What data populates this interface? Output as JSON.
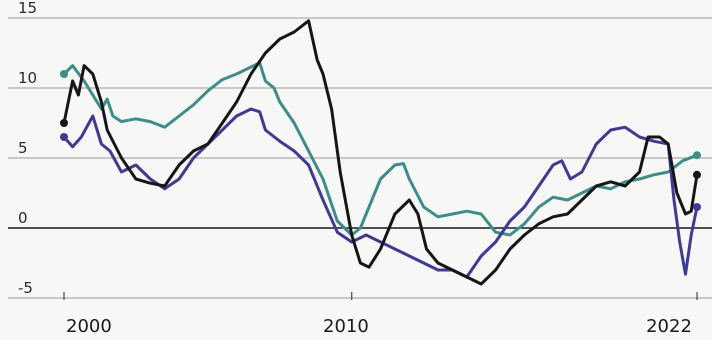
{
  "chart_data": {
    "type": "line",
    "ylim": [
      -5,
      15
    ],
    "xlim": [
      1999.75,
      2022.1
    ],
    "yticks": [
      -5,
      0,
      5,
      10,
      15
    ],
    "ytick_labels": [
      "-5",
      "0",
      "5",
      "10",
      "15"
    ],
    "xtick_labels": [
      {
        "x": 2000,
        "label": "2000"
      },
      {
        "x": 2010,
        "label": "2010"
      },
      {
        "x": 2022,
        "label": "2022"
      }
    ],
    "grid": true,
    "series": [
      {
        "color": "#3a8f88",
        "points": [
          [
            2000.0,
            11.0
          ],
          [
            2000.3,
            11.6
          ],
          [
            2000.7,
            10.5
          ],
          [
            2001.0,
            9.5
          ],
          [
            2001.3,
            8.5
          ],
          [
            2001.5,
            9.2
          ],
          [
            2001.7,
            8.0
          ],
          [
            2002.0,
            7.6
          ],
          [
            2002.5,
            7.8
          ],
          [
            2003.0,
            7.6
          ],
          [
            2003.5,
            7.2
          ],
          [
            2004.0,
            8.0
          ],
          [
            2004.5,
            8.8
          ],
          [
            2005.0,
            9.8
          ],
          [
            2005.5,
            10.6
          ],
          [
            2006.0,
            11.0
          ],
          [
            2006.5,
            11.5
          ],
          [
            2006.8,
            11.8
          ],
          [
            2007.0,
            10.5
          ],
          [
            2007.3,
            10.0
          ],
          [
            2007.5,
            9.0
          ],
          [
            2008.0,
            7.5
          ],
          [
            2008.5,
            5.5
          ],
          [
            2009.0,
            3.5
          ],
          [
            2009.5,
            0.5
          ],
          [
            2010.0,
            -0.5
          ],
          [
            2010.3,
            0.0
          ],
          [
            2010.7,
            2.0
          ],
          [
            2011.0,
            3.5
          ],
          [
            2011.5,
            4.5
          ],
          [
            2011.8,
            4.6
          ],
          [
            2012.0,
            3.5
          ],
          [
            2012.5,
            1.5
          ],
          [
            2013.0,
            0.8
          ],
          [
            2013.5,
            1.0
          ],
          [
            2014.0,
            1.2
          ],
          [
            2014.5,
            1.0
          ],
          [
            2015.0,
            -0.3
          ],
          [
            2015.5,
            -0.5
          ],
          [
            2016.0,
            0.3
          ],
          [
            2016.5,
            1.5
          ],
          [
            2017.0,
            2.2
          ],
          [
            2017.5,
            2.0
          ],
          [
            2018.0,
            2.5
          ],
          [
            2018.5,
            3.0
          ],
          [
            2019.0,
            2.8
          ],
          [
            2019.5,
            3.3
          ],
          [
            2020.0,
            3.5
          ],
          [
            2020.5,
            3.8
          ],
          [
            2021.0,
            4.0
          ],
          [
            2021.5,
            4.8
          ],
          [
            2022.0,
            5.2
          ]
        ]
      },
      {
        "color": "#3f3a9a",
        "points": [
          [
            2000.0,
            6.5
          ],
          [
            2000.3,
            5.8
          ],
          [
            2000.6,
            6.5
          ],
          [
            2001.0,
            8.0
          ],
          [
            2001.3,
            6.0
          ],
          [
            2001.6,
            5.5
          ],
          [
            2002.0,
            4.0
          ],
          [
            2002.5,
            4.5
          ],
          [
            2003.0,
            3.5
          ],
          [
            2003.5,
            2.8
          ],
          [
            2004.0,
            3.5
          ],
          [
            2004.5,
            5.0
          ],
          [
            2005.0,
            6.0
          ],
          [
            2005.5,
            7.0
          ],
          [
            2006.0,
            8.0
          ],
          [
            2006.5,
            8.5
          ],
          [
            2006.8,
            8.3
          ],
          [
            2007.0,
            7.0
          ],
          [
            2007.5,
            6.2
          ],
          [
            2008.0,
            5.5
          ],
          [
            2008.5,
            4.5
          ],
          [
            2009.0,
            2.0
          ],
          [
            2009.5,
            -0.3
          ],
          [
            2010.0,
            -1.0
          ],
          [
            2010.5,
            -0.5
          ],
          [
            2011.0,
            -1.0
          ],
          [
            2011.5,
            -1.5
          ],
          [
            2012.0,
            -2.0
          ],
          [
            2012.5,
            -2.5
          ],
          [
            2013.0,
            -3.0
          ],
          [
            2013.5,
            -3.0
          ],
          [
            2014.0,
            -3.5
          ],
          [
            2014.5,
            -2.0
          ],
          [
            2015.0,
            -1.0
          ],
          [
            2015.5,
            0.5
          ],
          [
            2016.0,
            1.5
          ],
          [
            2016.5,
            3.0
          ],
          [
            2017.0,
            4.5
          ],
          [
            2017.3,
            4.8
          ],
          [
            2017.6,
            3.5
          ],
          [
            2018.0,
            4.0
          ],
          [
            2018.5,
            6.0
          ],
          [
            2019.0,
            7.0
          ],
          [
            2019.5,
            7.2
          ],
          [
            2020.0,
            6.5
          ],
          [
            2020.5,
            6.2
          ],
          [
            2021.0,
            6.0
          ],
          [
            2021.2,
            2.0
          ],
          [
            2021.4,
            -1.0
          ],
          [
            2021.6,
            -3.3
          ],
          [
            2021.8,
            -0.5
          ],
          [
            2022.0,
            1.5
          ]
        ]
      },
      {
        "color": "#161616",
        "points": [
          [
            2000.0,
            7.5
          ],
          [
            2000.3,
            10.5
          ],
          [
            2000.5,
            9.5
          ],
          [
            2000.7,
            11.6
          ],
          [
            2001.0,
            11.0
          ],
          [
            2001.3,
            9.0
          ],
          [
            2001.5,
            7.0
          ],
          [
            2002.0,
            5.0
          ],
          [
            2002.5,
            3.5
          ],
          [
            2003.0,
            3.2
          ],
          [
            2003.5,
            3.0
          ],
          [
            2004.0,
            4.5
          ],
          [
            2004.5,
            5.5
          ],
          [
            2005.0,
            6.0
          ],
          [
            2005.5,
            7.5
          ],
          [
            2006.0,
            9.0
          ],
          [
            2006.5,
            11.0
          ],
          [
            2007.0,
            12.5
          ],
          [
            2007.5,
            13.5
          ],
          [
            2008.0,
            14.0
          ],
          [
            2008.5,
            14.8
          ],
          [
            2008.8,
            12.0
          ],
          [
            2009.0,
            11.0
          ],
          [
            2009.3,
            8.5
          ],
          [
            2009.6,
            4.0
          ],
          [
            2010.0,
            -0.5
          ],
          [
            2010.3,
            -2.5
          ],
          [
            2010.6,
            -2.8
          ],
          [
            2011.0,
            -1.5
          ],
          [
            2011.5,
            1.0
          ],
          [
            2012.0,
            2.0
          ],
          [
            2012.3,
            1.0
          ],
          [
            2012.6,
            -1.5
          ],
          [
            2013.0,
            -2.5
          ],
          [
            2013.5,
            -3.0
          ],
          [
            2014.0,
            -3.5
          ],
          [
            2014.5,
            -4.0
          ],
          [
            2015.0,
            -3.0
          ],
          [
            2015.5,
            -1.5
          ],
          [
            2016.0,
            -0.5
          ],
          [
            2016.5,
            0.3
          ],
          [
            2017.0,
            0.8
          ],
          [
            2017.5,
            1.0
          ],
          [
            2018.0,
            2.0
          ],
          [
            2018.5,
            3.0
          ],
          [
            2019.0,
            3.3
          ],
          [
            2019.5,
            3.0
          ],
          [
            2020.0,
            4.0
          ],
          [
            2020.3,
            6.5
          ],
          [
            2020.7,
            6.5
          ],
          [
            2021.0,
            6.0
          ],
          [
            2021.3,
            2.5
          ],
          [
            2021.6,
            1.0
          ],
          [
            2021.8,
            1.2
          ],
          [
            2022.0,
            3.8
          ]
        ]
      }
    ]
  }
}
